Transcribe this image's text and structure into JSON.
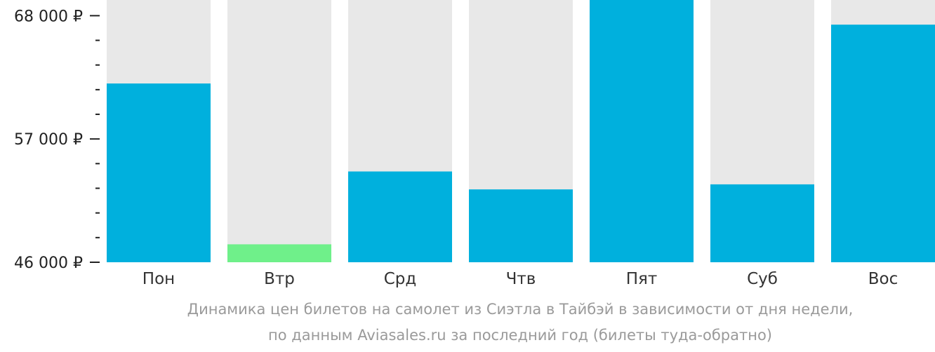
{
  "chart_data": {
    "type": "bar",
    "categories": [
      "Пон",
      "Втр",
      "Срд",
      "Чтв",
      "Пят",
      "Суб",
      "Вос"
    ],
    "values": [
      61950,
      47600,
      54100,
      52500,
      69400,
      52950,
      67200
    ],
    "highlight_index": 1,
    "ylim": [
      46000,
      69400
    ],
    "y_ticks": [
      {
        "value": 46000,
        "label": "46 000 ₽"
      },
      {
        "value": 57000,
        "label": "57 000 ₽"
      },
      {
        "value": 68000,
        "label": "68 000 ₽"
      }
    ],
    "y_minor_step": 2200,
    "title": "",
    "xlabel": "",
    "ylabel": "",
    "grid": false,
    "colors": {
      "bar": "#00b0dd",
      "highlight": "#6ff08a",
      "track": "#e8e8e8",
      "axis": "#222222"
    }
  },
  "caption": {
    "line1": "Динамика цен билетов на самолет из Сиэтла в Тайбэй в зависимости от дня недели,",
    "line2": "по данным Aviasales.ru за последний год (билеты туда-обратно)"
  }
}
